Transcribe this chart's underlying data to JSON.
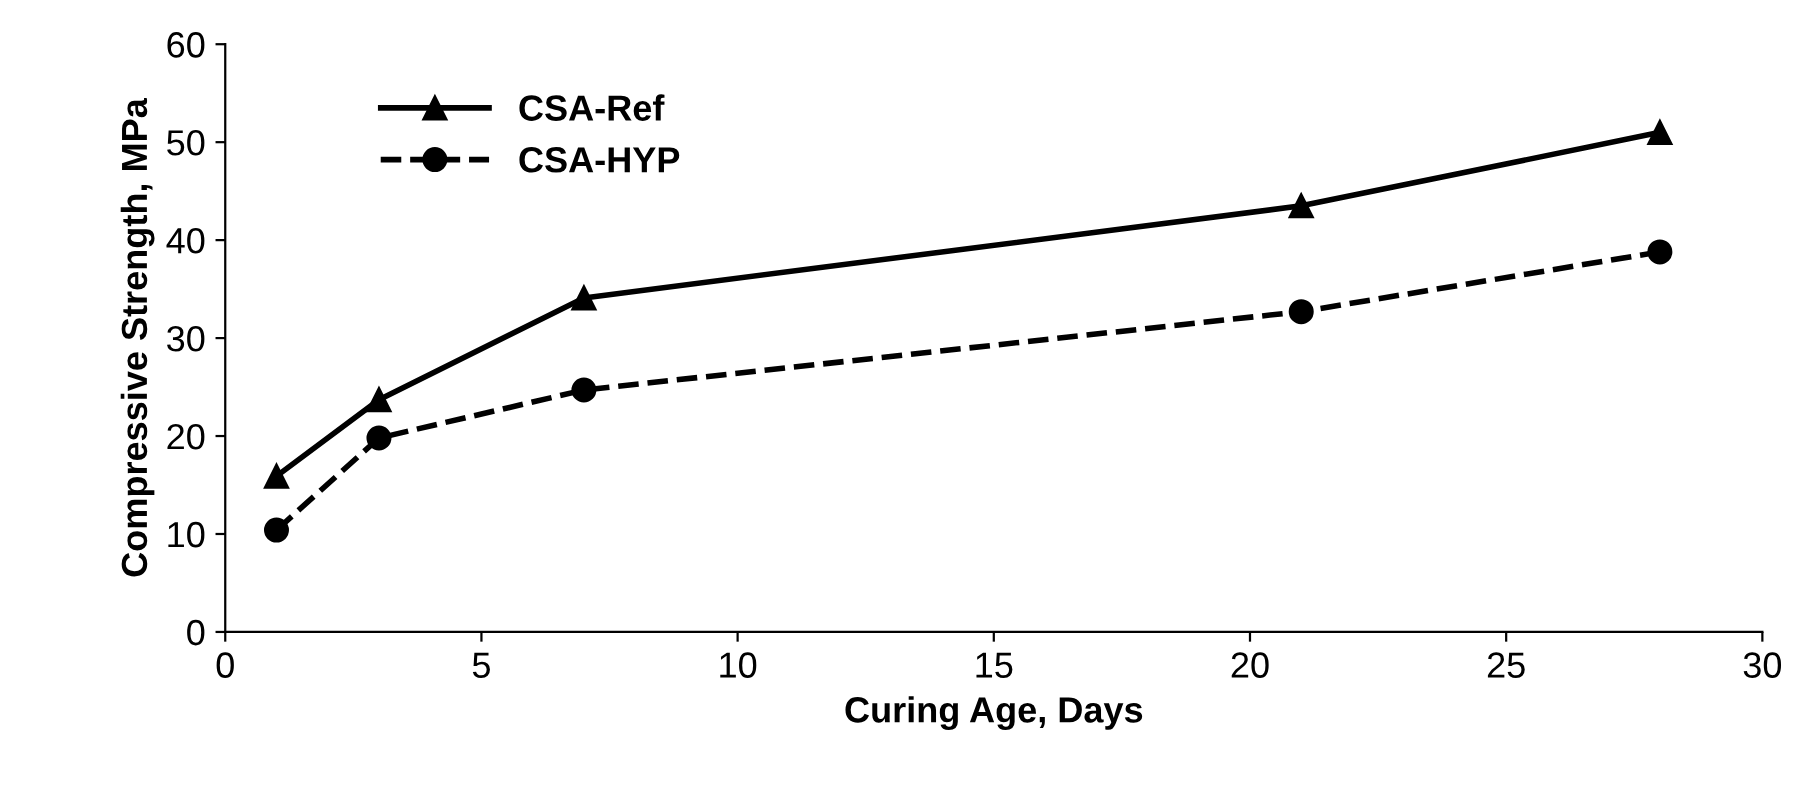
{
  "chart_data": {
    "type": "line",
    "xlabel": "Curing Age, Days",
    "ylabel": "Compressive Strength, MPa",
    "xlim": [
      0,
      30
    ],
    "xticks": [
      0,
      5,
      10,
      15,
      20,
      25,
      30
    ],
    "ylim": [
      0,
      60
    ],
    "yticks": [
      0,
      10,
      20,
      30,
      40,
      50,
      60
    ],
    "grid": false,
    "legend": "top left",
    "series": [
      {
        "name": "CSA-Ref",
        "color": "#000000",
        "x": [
          1,
          3,
          7,
          21,
          28
        ],
        "values": [
          15.9,
          23.7,
          34.1,
          43.5,
          51.0
        ],
        "marker": "triangle",
        "line_style": "solid"
      },
      {
        "name": "CSA-HYP",
        "color": "#000000",
        "x": [
          1,
          3,
          7,
          21,
          28
        ],
        "values": [
          10.4,
          19.8,
          24.7,
          32.7,
          38.8
        ],
        "marker": "circle",
        "line_style": "dashed"
      }
    ]
  }
}
